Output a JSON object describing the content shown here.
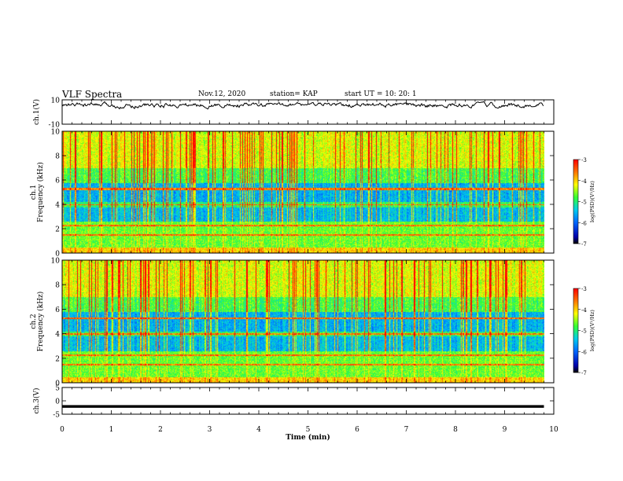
{
  "header": {
    "title": "VLF Spectra",
    "date": "Nov.12, 2020",
    "station": "station= KAP",
    "start_ut": "start  UT =   10: 20: 1"
  },
  "chart_data": [
    {
      "type": "line",
      "panel": "ch1-waveform",
      "ylabel": "ch.1(V)",
      "yticks": [
        "10",
        "-10"
      ],
      "ylim": [
        -10,
        10
      ],
      "x_range_min": [
        0,
        9.8
      ],
      "note_values": "noisy waveform, amplitude approx 3 to 8 V"
    },
    {
      "type": "heatmap",
      "panel": "ch1-spectrogram",
      "ylabel": "ch.1\nFrequency (kHz)",
      "yticks": [
        "0",
        "2",
        "4",
        "6",
        "8",
        "10"
      ],
      "ylim": [
        0,
        10
      ],
      "colorbar": {
        "label": "log(PSD)(V²/Hz)",
        "ticks": [
          "-3",
          "-4",
          "-5",
          "-6",
          "-7"
        ],
        "range": [
          -7,
          -3
        ]
      }
    },
    {
      "type": "heatmap",
      "panel": "ch2-spectrogram",
      "ylabel": "ch.2\nFrequency (kHz)",
      "yticks": [
        "0",
        "2",
        "4",
        "6",
        "8",
        "10"
      ],
      "ylim": [
        0,
        10
      ],
      "colorbar": {
        "label": "log(PSD)(V²/Hz)",
        "ticks": [
          "-3",
          "-4",
          "-5",
          "-6",
          "-7"
        ],
        "range": [
          -7,
          -3
        ]
      }
    },
    {
      "type": "line",
      "panel": "ch3-waveform",
      "ylabel": "ch.3(V)",
      "yticks": [
        "5",
        "0",
        "-5"
      ],
      "ylim": [
        -5,
        5
      ],
      "x_range_min": [
        0,
        9.8
      ],
      "note_values": "thick flat trace near -2 V"
    }
  ],
  "xaxis": {
    "label": "Time (min)",
    "ticks": [
      "0",
      "1",
      "2",
      "3",
      "4",
      "5",
      "6",
      "7",
      "8",
      "9",
      "10"
    ]
  },
  "colors": {
    "line": "#000000",
    "axis": "#000000"
  }
}
